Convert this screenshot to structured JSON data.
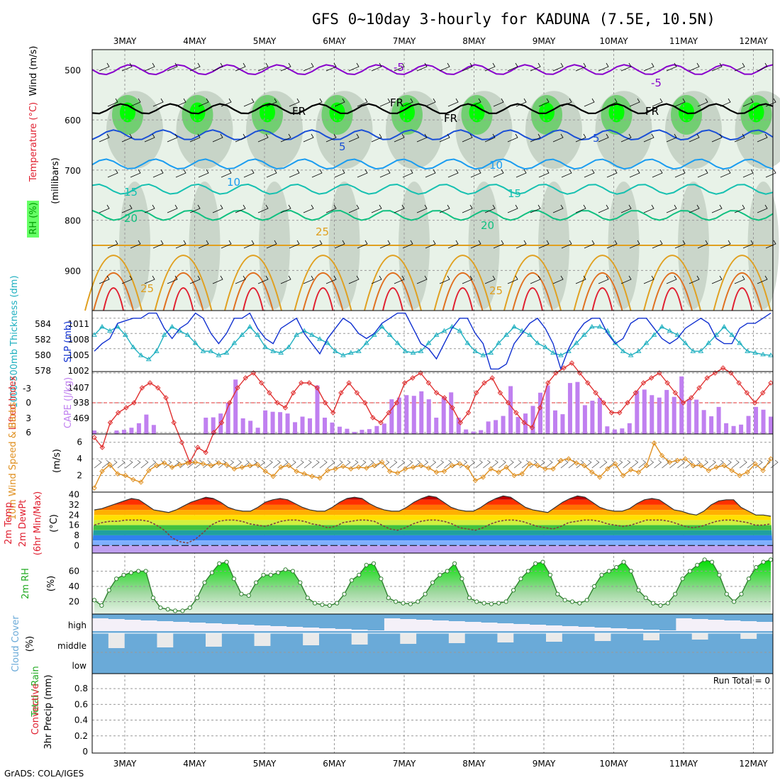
{
  "title": "GFS 0~10day 3-hourly for KADUNA (7.5E, 10.5N)",
  "credit": "GrADS: COLA/IGES",
  "run_total": "Run Total = 0",
  "colors": {
    "rh_green": "#00ff00",
    "rh_mid": "#55cc55",
    "rh_grey": "#b0c0b0",
    "rh_light": "#e8f2e8",
    "purple": "#8800cc",
    "black": "#000000",
    "blue": "#1a4fd6",
    "lightblue": "#1a9cf0",
    "teal": "#15c0b0",
    "green": "#10c080",
    "orange": "#e0a020",
    "red": "#e02030",
    "slp": "#1030d0",
    "thick": "#20b0c0",
    "cape": "#c080f0",
    "li": "#e03030",
    "wind": "#e09020",
    "cloud": "#6aaad8",
    "cloud_bg": "#eaeaea"
  },
  "chart_data": [
    {
      "type": "heatmap",
      "ylabel_parts": [
        "RH (%)",
        "Temperature (°C)",
        "Wind (m/s)"
      ],
      "yaxis_label": "(millibars)",
      "x": [
        "3MAY",
        "4MAY",
        "5MAY",
        "6MAY",
        "7MAY",
        "8MAY",
        "9MAY",
        "10MAY",
        "11MAY",
        "12MAY"
      ],
      "yticks": [
        500,
        600,
        700,
        800,
        900
      ],
      "ylim": [
        980,
        460
      ],
      "contour_labels": [
        "-5",
        "-5",
        "5",
        "5",
        "10",
        "10",
        "15",
        "15",
        "20",
        "20",
        "25",
        "25",
        "25",
        "FR",
        "FR",
        "FR",
        "FR"
      ],
      "isotherms": [
        {
          "name": "-5",
          "level": 500
        },
        {
          "name": "FR",
          "level": 578
        },
        {
          "name": "5",
          "level": 630
        },
        {
          "name": "10",
          "level": 688
        },
        {
          "name": "15",
          "level": 738
        },
        {
          "name": "20",
          "level": 790
        },
        {
          "name": "25",
          "level": 850
        }
      ]
    },
    {
      "type": "line",
      "ylabel": "SLP (mb)",
      "ylabel2": "1000-500mb Thickness (dm)",
      "yticks_left": [
        "584",
        "582",
        "580",
        "578"
      ],
      "yticks_right": [
        "1011",
        "1008",
        "1005",
        "1002"
      ],
      "series": [
        {
          "name": "SLP (mb)",
          "values": [
            1004.5,
            1006,
            1007,
            1010,
            1010.5,
            1011,
            1011,
            1012,
            1012,
            1009,
            1007,
            1009,
            1010,
            1012,
            1011,
            1008,
            1006,
            1008,
            1011,
            1011,
            1012,
            1009,
            1007,
            1006,
            1009,
            1010,
            1011,
            1008,
            1006,
            1004,
            1007,
            1009,
            1011,
            1010,
            1008,
            1007,
            1008,
            1010,
            1011,
            1012,
            1012,
            1009,
            1006,
            1005,
            1003,
            1006,
            1009,
            1011,
            1011,
            1008,
            1006,
            1001,
            1001,
            1002,
            1006,
            1008,
            1010,
            1011,
            1009,
            1006,
            1001,
            1005,
            1008,
            1010,
            1011,
            1011,
            1008,
            1006,
            1007,
            1010,
            1011,
            1011,
            1009,
            1007,
            1006,
            1007,
            1009,
            1010,
            1011,
            1010,
            1007,
            1006,
            1006,
            1009,
            1010,
            1010,
            1011,
            1012
          ]
        },
        {
          "name": "1000-500mb Thickness (dm)",
          "values": [
            582,
            583,
            582.5,
            583,
            582,
            580.5,
            579.5,
            579,
            580,
            582,
            583,
            582.5,
            582,
            581,
            580,
            580,
            579.5,
            579.8,
            581,
            582,
            583,
            582,
            580.5,
            580,
            579.8,
            580.5,
            582,
            582.5,
            582,
            581.5,
            581,
            580,
            579.5,
            579.8,
            580,
            581,
            582,
            583,
            582,
            581,
            580,
            579.8,
            580,
            581,
            582,
            582.5,
            583,
            582.5,
            581,
            580,
            579.5,
            579.8,
            581,
            582,
            583,
            582.5,
            582,
            581,
            580.5,
            579.8,
            579.5,
            580,
            581,
            582,
            583,
            583,
            582.5,
            581,
            580,
            579.5,
            580,
            581,
            582,
            583,
            582.5,
            582,
            581,
            580,
            580,
            581,
            582,
            583,
            582,
            581,
            580,
            579.8,
            579.6,
            579.5
          ]
        }
      ]
    },
    {
      "type": "bar",
      "ylabel": "Lifted Index",
      "ylabel2": "CAPE (J/kg)",
      "yticks_left": [
        "-3",
        "0",
        "3",
        "6"
      ],
      "yticks_right": [
        "1407",
        "938",
        "469"
      ],
      "series": [
        {
          "name": "CAPE (J/kg)",
          "values": [
            100,
            0,
            0,
            100,
            120,
            180,
            310,
            560,
            260,
            0,
            0,
            0,
            0,
            0,
            0,
            470,
            480,
            590,
            900,
            1570,
            450,
            380,
            180,
            680,
            640,
            630,
            590,
            340,
            500,
            450,
            1400,
            470,
            330,
            210,
            150,
            60,
            120,
            140,
            230,
            300,
            1000,
            1050,
            1120,
            1100,
            1230,
            1000,
            470,
            1060,
            1200,
            470,
            130,
            70,
            110,
            360,
            400,
            520,
            1380,
            490,
            590,
            810,
            1190,
            1400,
            680,
            570,
            1470,
            1500,
            830,
            960,
            1040,
            220,
            130,
            160,
            310,
            1250,
            1280,
            1120,
            1050,
            1270,
            1070,
            1660,
            1010,
            990,
            690,
            510,
            780,
            310,
            230,
            270,
            520,
            780,
            700,
            500
          ]
        },
        {
          "name": "Lifted Index",
          "values": [
            3.5,
            4.5,
            2,
            1,
            0.5,
            0,
            -1.5,
            -2,
            -1.5,
            -0.5,
            2,
            4,
            6,
            4.5,
            5,
            3,
            2,
            0,
            -1.5,
            -2.5,
            -3,
            -2,
            -1,
            0,
            0.5,
            -1,
            -2,
            -2,
            -1.5,
            0,
            1,
            -1,
            -2,
            -1,
            0,
            1.5,
            2,
            1,
            0,
            -2,
            -2.5,
            -3,
            -2,
            -1,
            -0.5,
            0.5,
            2,
            1,
            -1,
            -2,
            -2.5,
            -1,
            0,
            1,
            2,
            2.5,
            0.5,
            -2,
            -3,
            -3.5,
            -4,
            -3,
            -2,
            -1,
            0,
            1,
            1,
            0,
            -1,
            -2,
            -2.5,
            -3,
            -2,
            -1,
            0,
            -0.5,
            -1.5,
            -2.5,
            -3,
            -3.5,
            -3,
            -2,
            -1,
            0,
            -1,
            -2
          ]
        }
      ]
    },
    {
      "type": "line",
      "ylabel": "10m Wind Speed & Barbs",
      "yunit": "(m/s)",
      "yticks": [
        "6",
        "4",
        "2"
      ],
      "series": [
        {
          "name": "10m Wind Speed",
          "values": [
            0.5,
            2.5,
            3.3,
            2.2,
            2,
            1.5,
            1.2,
            2.6,
            3.2,
            3.5,
            3,
            3.3,
            3.5,
            3.6,
            3.4,
            3.2,
            3.5,
            3.3,
            2.8,
            3,
            3.2,
            3.3,
            2.5,
            1.9,
            3,
            3.2,
            2.5,
            2.2,
            1.9,
            1.7,
            2.6,
            2.8,
            3.1,
            2.8,
            3,
            2.9,
            3.2,
            3.6,
            2.5,
            2.3,
            2.8,
            3,
            3.2,
            2.9,
            2.4,
            2.5,
            3.2,
            3.4,
            3,
            1.4,
            1.8,
            2.8,
            2.4,
            3,
            2,
            2.2,
            3.4,
            3.2,
            2.8,
            2.8,
            3.8,
            4,
            3.5,
            3.2,
            2.4,
            1.8,
            2.8,
            3.4,
            2,
            2.7,
            2.4,
            3.2,
            5.9,
            4.4,
            3.6,
            3.8,
            4,
            3.2,
            3.2,
            2.6,
            3,
            3.2,
            2.6,
            2,
            2.4,
            3.4,
            2.6,
            4
          ]
        }
      ]
    },
    {
      "type": "area",
      "ylabel": "2m Temp",
      "ylabel2": "2m DewPt",
      "ylabel3": "(6hr Min/Max)",
      "yunit": "(°C)",
      "yticks": [
        "40",
        "32",
        "24",
        "16",
        "8",
        "0"
      ],
      "series": [
        {
          "name": "2m Temp",
          "values": [
            28,
            29,
            31,
            33,
            35,
            37,
            36,
            32,
            28,
            27,
            26,
            28,
            31,
            34,
            36,
            38,
            37,
            34,
            30,
            28,
            27,
            27,
            30,
            34,
            36,
            37,
            36,
            33,
            30,
            28,
            27,
            27,
            30,
            34,
            37,
            38,
            37,
            33,
            30,
            28,
            27,
            27,
            30,
            34,
            37,
            39,
            38,
            34,
            30,
            28,
            27,
            27,
            30,
            34,
            37,
            39,
            38,
            34,
            30,
            28,
            27,
            26,
            30,
            34,
            37,
            39,
            38,
            34,
            30,
            28,
            27,
            27,
            29,
            33,
            36,
            37,
            36,
            32,
            28,
            27,
            25,
            24,
            27,
            32,
            35,
            36,
            36,
            30,
            27,
            24,
            24,
            23
          ]
        },
        {
          "name": "2m DewPt",
          "values": [
            16,
            18,
            19,
            19,
            20,
            20,
            20,
            19,
            16,
            12,
            6,
            3,
            2,
            5,
            10,
            16,
            19,
            20,
            20,
            19,
            17,
            16,
            15,
            17,
            19,
            20,
            20,
            19,
            17,
            16,
            14,
            15,
            18,
            19,
            20,
            20,
            19,
            16,
            13,
            12,
            14,
            17,
            19,
            20,
            20,
            19,
            17,
            14,
            13,
            12,
            14,
            17,
            19,
            20,
            20,
            19,
            17,
            15,
            14,
            13,
            15,
            18,
            19,
            20,
            20,
            19,
            17,
            16,
            15,
            16,
            18,
            20,
            20,
            20,
            19,
            17,
            15,
            14,
            15,
            17,
            19,
            20,
            20,
            19,
            18,
            16,
            16,
            17
          ]
        }
      ]
    },
    {
      "type": "area",
      "ylabel": "2m RH",
      "yunit": "(%)",
      "yticks": [
        "60",
        "40",
        "20"
      ],
      "series": [
        {
          "name": "2m RH",
          "values": [
            22,
            15,
            35,
            50,
            55,
            58,
            60,
            60,
            25,
            12,
            10,
            8,
            8,
            12,
            25,
            45,
            58,
            70,
            72,
            50,
            30,
            28,
            45,
            55,
            55,
            58,
            62,
            60,
            45,
            25,
            18,
            16,
            15,
            18,
            30,
            48,
            55,
            68,
            70,
            50,
            25,
            20,
            18,
            17,
            20,
            30,
            45,
            55,
            60,
            70,
            50,
            25,
            20,
            18,
            17,
            18,
            20,
            35,
            50,
            60,
            70,
            72,
            55,
            30,
            22,
            20,
            18,
            22,
            40,
            55,
            60,
            65,
            72,
            60,
            35,
            25,
            18,
            15,
            18,
            30,
            50,
            60,
            68,
            75,
            72,
            55,
            30,
            20,
            30,
            50,
            65,
            72,
            75
          ]
        }
      ]
    },
    {
      "type": "bar",
      "ylabel": "Cloud Cover",
      "yunit": "(%)",
      "categories": [
        "high",
        "middle",
        "low"
      ]
    },
    {
      "type": "bar",
      "ylabel": "Total / Rain",
      "ylabel2": "Convective",
      "yunit": "3hr Precip (mm)",
      "yticks": [
        "0.8",
        "0.6",
        "0.4",
        "0.2",
        "0"
      ],
      "ylim": [
        0,
        0.9
      ],
      "values": []
    }
  ]
}
